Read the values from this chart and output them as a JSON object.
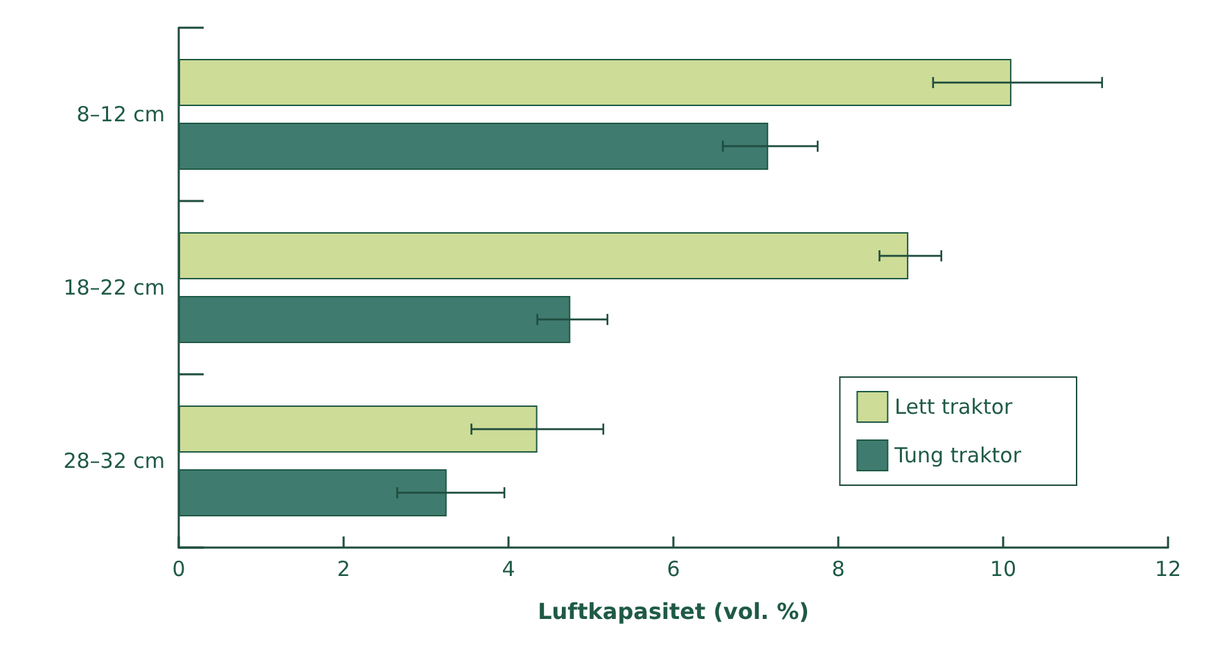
{
  "chart_data": {
    "type": "bar",
    "orientation": "horizontal",
    "xlabel": "Luftkapasitet (vol. %)",
    "categories": [
      "8–12 cm",
      "18–22 cm",
      "28–32 cm"
    ],
    "series": [
      {
        "name": "Lett traktor",
        "color": "#cddc96",
        "values": [
          10.1,
          8.85,
          4.35
        ],
        "errors": [
          [
            9.15,
            11.2
          ],
          [
            8.5,
            9.25
          ],
          [
            3.55,
            5.15
          ]
        ]
      },
      {
        "name": "Tung traktor",
        "color": "#3f7b6e",
        "values": [
          7.15,
          4.75,
          3.25
        ],
        "errors": [
          [
            6.6,
            7.75
          ],
          [
            4.35,
            5.2
          ],
          [
            2.65,
            3.95
          ]
        ]
      }
    ],
    "xlim": [
      0,
      12
    ],
    "xticks": [
      0,
      2,
      4,
      6,
      8,
      10,
      12
    ],
    "grid": false,
    "legend": "bottom right"
  }
}
